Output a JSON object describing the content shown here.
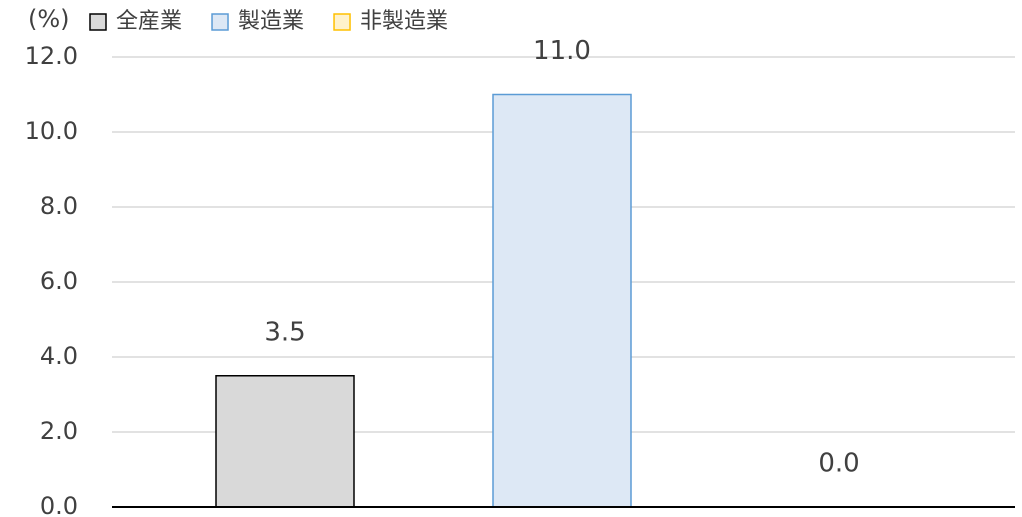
{
  "chart_data": {
    "type": "bar",
    "ylabel": "(%)",
    "series": [
      {
        "name": "全産業",
        "color": "#d9d9d9",
        "edgecolor": "#000000",
        "values": [
          3.5
        ],
        "value_labels": [
          "3.5"
        ]
      },
      {
        "name": "製造業",
        "color": "#dde8f5",
        "edgecolor": "#5b9bd5",
        "values": [
          11.0
        ],
        "value_labels": [
          "11.0"
        ]
      },
      {
        "name": "非製造業",
        "color": "#fff2cc",
        "edgecolor": "#ffc000",
        "values": [
          0.0
        ],
        "value_labels": [
          "0.0"
        ]
      }
    ],
    "ylim": [
      0,
      12
    ],
    "yticks": [
      {
        "value": 0,
        "label": "0.0"
      },
      {
        "value": 2,
        "label": "2.0"
      },
      {
        "value": 4,
        "label": "4.0"
      },
      {
        "value": 6,
        "label": "6.0"
      },
      {
        "value": 8,
        "label": "8.0"
      },
      {
        "value": 10,
        "label": "10.0"
      },
      {
        "value": 12,
        "label": "12.0"
      }
    ],
    "grid": true
  }
}
